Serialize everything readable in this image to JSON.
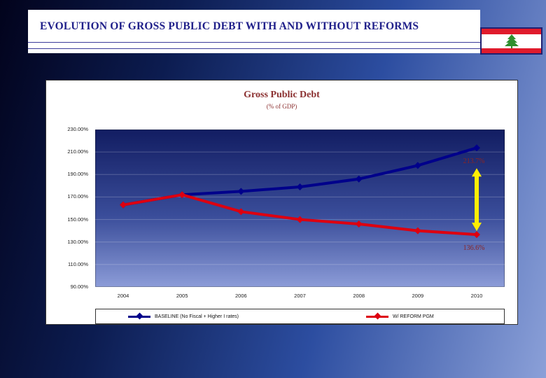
{
  "page": {
    "title": "EVOLUTION OF GROSS PUBLIC DEBT WITH AND WITHOUT REFORMS"
  },
  "flag": {
    "label": "lebanon-flag",
    "red": "#e01b2c",
    "white": "#ffffff",
    "green": "#2f8f2f",
    "border": "#202070"
  },
  "chart_data": {
    "type": "line",
    "title": "Gross Public Debt",
    "subtitle": "(% of GDP)",
    "categories": [
      "2004",
      "2005",
      "2006",
      "2007",
      "2008",
      "2009",
      "2010"
    ],
    "series": [
      {
        "name": "BASELINE (No Fiscal + Higher I rates)",
        "color": "#00008b",
        "values": [
          163,
          172,
          175,
          179,
          186,
          198,
          213.7
        ]
      },
      {
        "name": "W/ REFORM PGM",
        "color": "#dd0010",
        "values": [
          163,
          172,
          157,
          150,
          146,
          140,
          136.6
        ]
      }
    ],
    "ylim": [
      90,
      230
    ],
    "ytick_labels": [
      "230.00%",
      "210.00%",
      "190.00%",
      "170.00%",
      "150.00%",
      "130.00%",
      "110.00%",
      "90.00%"
    ],
    "xlabel": "",
    "ylabel": "",
    "grid": true,
    "legend_position": "bottom",
    "annotations": [
      {
        "text": "213.7%",
        "series": 0,
        "index": 6
      },
      {
        "text": "136.6%",
        "series": 1,
        "index": 6
      }
    ],
    "arrow": {
      "index": 6,
      "from_series": 0,
      "to_series": 1,
      "color": "#ffee00"
    }
  }
}
